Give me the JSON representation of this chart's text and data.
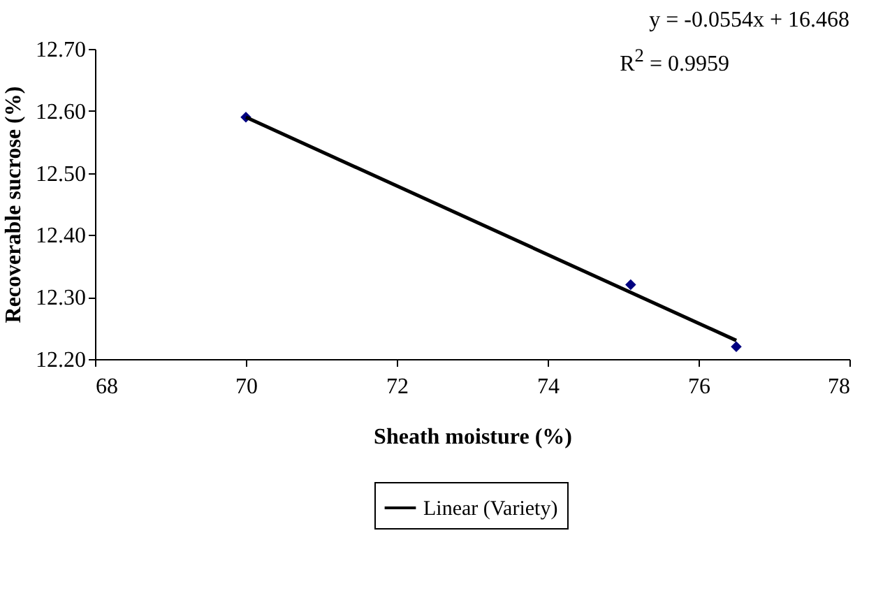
{
  "chart_data": {
    "type": "scatter",
    "xlabel": "Sheath moisture (%)",
    "ylabel": "Recoverable sucrose (%)",
    "xlim": [
      68,
      78
    ],
    "xticks": [
      68,
      70,
      72,
      74,
      76,
      78
    ],
    "ylim": [
      12.2,
      12.7
    ],
    "yticks": [
      {
        "value": 12.2,
        "label": "12.20"
      },
      {
        "value": 12.3,
        "label": "12.30"
      },
      {
        "value": 12.4,
        "label": "12.40"
      },
      {
        "value": 12.5,
        "label": "12.50"
      },
      {
        "value": 12.6,
        "label": "12.60"
      },
      {
        "value": 12.7,
        "label": "12.70"
      }
    ],
    "marker": "diamond",
    "line_style": "solid",
    "legend": "bottom",
    "annotations": [
      "y = -0.0554x + 16.468",
      "R$^{2}$ = 0.9959"
    ],
    "series": [
      {
        "color": "#000080",
        "x": [
          70,
          75.1,
          76.5
        ],
        "values": [
          12.59,
          12.32,
          12.22
        ]
      },
      {
        "type": "line",
        "marker": "none",
        "name": "Linear (Variety)",
        "color": "#000000",
        "x": [
          70,
          76.5
        ],
        "values": [
          12.59,
          12.23
        ]
      }
    ]
  }
}
